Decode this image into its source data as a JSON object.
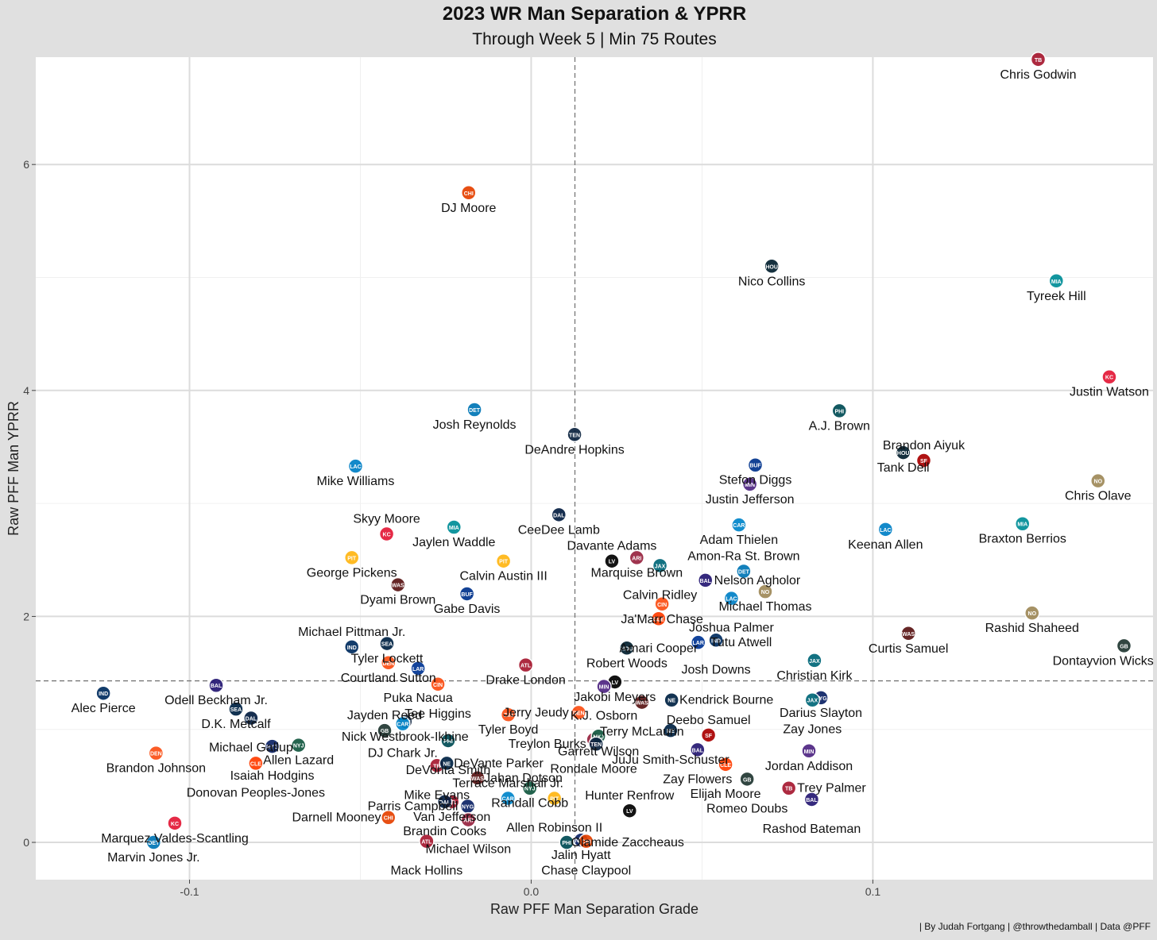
{
  "header": {
    "title": "2023 WR Man Separation & YPRR",
    "subtitle": "Through Week 5 | Min 75 Routes"
  },
  "caption": "| By Judah Fortgang | @throwthedamball | Data @PFF",
  "chart_data": {
    "type": "scatter",
    "title": "2023 WR Man Separation & YPRR",
    "subtitle": "Through Week 5 | Min 75 Routes",
    "xlabel": "Raw PFF Man Separation Grade",
    "ylabel": "Raw PFF Man YPRR",
    "xlim": [
      -0.145,
      0.182
    ],
    "ylim": [
      -0.33,
      6.95
    ],
    "x_ticks": [
      -0.1,
      0.0,
      0.1
    ],
    "x_tick_labels": [
      "-0.1",
      "0.0",
      "0.1"
    ],
    "y_ticks": [
      0,
      2,
      4,
      6
    ],
    "y_tick_labels": [
      "0",
      "2",
      "4",
      "6"
    ],
    "grid": true,
    "reference_lines": {
      "x": 0.0128,
      "y": 1.43
    },
    "colors": {
      "background": "#e0e0e0",
      "panel": "#ffffff",
      "grid": "#dcdcdc",
      "reference_line": "#777777"
    },
    "points": [
      {
        "name": "Chris Godwin",
        "x": 0.1484,
        "y": 6.93,
        "team": "TB",
        "color": "#a71930"
      },
      {
        "name": "DJ Moore",
        "x": -0.0183,
        "y": 5.75,
        "team": "CHI",
        "color": "#e64100"
      },
      {
        "name": "Nico Collins",
        "x": 0.0704,
        "y": 5.1,
        "team": "HOU",
        "color": "#03202f"
      },
      {
        "name": "Tyreek Hill",
        "x": 0.1537,
        "y": 4.97,
        "team": "MIA",
        "color": "#008e97"
      },
      {
        "name": "Justin Watson",
        "x": 0.1692,
        "y": 4.12,
        "team": "KC",
        "color": "#e31837"
      },
      {
        "name": "Josh Reynolds",
        "x": -0.0166,
        "y": 3.83,
        "team": "DET",
        "color": "#0076b6"
      },
      {
        "name": "A.J. Brown",
        "x": 0.0902,
        "y": 3.82,
        "team": "PHI",
        "color": "#004c54"
      },
      {
        "name": "DeAndre Hopkins",
        "x": 0.0127,
        "y": 3.61,
        "team": "TEN",
        "color": "#0c2340"
      },
      {
        "name": "Tank Dell",
        "x": 0.1089,
        "y": 3.45,
        "team": "HOU",
        "color": "#03202f"
      },
      {
        "name": "Brandon Aiyuk",
        "x": 0.1149,
        "y": 3.38,
        "team": "SF",
        "color": "#aa0000"
      },
      {
        "name": "Stefon Diggs",
        "x": 0.0656,
        "y": 3.34,
        "team": "BUF",
        "color": "#00338d"
      },
      {
        "name": "Mike Williams",
        "x": -0.0514,
        "y": 3.33,
        "team": "LAC",
        "color": "#0080c6"
      },
      {
        "name": "Justin Jefferson",
        "x": 0.064,
        "y": 3.17,
        "team": "MIN",
        "color": "#4f2683"
      },
      {
        "name": "Chris Olave",
        "x": 0.1659,
        "y": 3.2,
        "team": "NO",
        "color": "#9f8958"
      },
      {
        "name": "CeeDee Lamb",
        "x": 0.0081,
        "y": 2.9,
        "team": "DAL",
        "color": "#041e42"
      },
      {
        "name": "Braxton Berrios",
        "x": 0.1438,
        "y": 2.82,
        "team": "MIA",
        "color": "#008e97"
      },
      {
        "name": "Jaylen Waddle",
        "x": -0.0226,
        "y": 2.79,
        "team": "MIA",
        "color": "#008e97"
      },
      {
        "name": "Adam Thielen",
        "x": 0.0608,
        "y": 2.81,
        "team": "CAR",
        "color": "#0085ca"
      },
      {
        "name": "Keenan Allen",
        "x": 0.1037,
        "y": 2.77,
        "team": "LAC",
        "color": "#0080c6"
      },
      {
        "name": "Skyy Moore",
        "x": -0.0423,
        "y": 2.73,
        "team": "KC",
        "color": "#e31837"
      },
      {
        "name": "George Pickens",
        "x": -0.0525,
        "y": 2.52,
        "team": "PIT",
        "color": "#ffb612"
      },
      {
        "name": "Calvin Austin III",
        "x": -0.0081,
        "y": 2.49,
        "team": "PIT",
        "color": "#ffb612"
      },
      {
        "name": "Marquise Brown",
        "x": 0.0309,
        "y": 2.52,
        "team": "ARI",
        "color": "#97233f"
      },
      {
        "name": "Davante Adams",
        "x": 0.0236,
        "y": 2.49,
        "team": "LV",
        "color": "#000000"
      },
      {
        "name": "Calvin Ridley",
        "x": 0.0377,
        "y": 2.45,
        "team": "JAX",
        "color": "#006778"
      },
      {
        "name": "Amon-Ra St. Brown",
        "x": 0.0622,
        "y": 2.4,
        "team": "DET",
        "color": "#0076b6"
      },
      {
        "name": "Nelson Agholor",
        "x": 0.051,
        "y": 2.32,
        "team": "BAL",
        "color": "#241773"
      },
      {
        "name": "Dyami Brown",
        "x": -0.039,
        "y": 2.28,
        "team": "WAS",
        "color": "#5a1414"
      },
      {
        "name": "Michael Thomas",
        "x": 0.0685,
        "y": 2.22,
        "team": "NO",
        "color": "#9f8958"
      },
      {
        "name": "Gabe Davis",
        "x": -0.0188,
        "y": 2.2,
        "team": "BUF",
        "color": "#00338d"
      },
      {
        "name": "Joshua Palmer",
        "x": 0.0586,
        "y": 2.16,
        "team": "LAC",
        "color": "#0080c6"
      },
      {
        "name": "Ja'Marr Chase",
        "x": 0.0383,
        "y": 2.11,
        "team": "CIN",
        "color": "#fb4f14"
      },
      {
        "name": "Rashid Shaheed",
        "x": 0.1466,
        "y": 2.03,
        "team": "NO",
        "color": "#9f8958"
      },
      {
        "name": "Amari Cooper",
        "x": 0.0373,
        "y": 1.98,
        "team": "CLE",
        "color": "#ff3c00"
      },
      {
        "name": "Curtis Samuel",
        "x": 0.1104,
        "y": 1.85,
        "team": "WAS",
        "color": "#5a1414"
      },
      {
        "name": "Josh Downs",
        "x": 0.0541,
        "y": 1.79,
        "team": "IND",
        "color": "#002c5f"
      },
      {
        "name": "Tutu Atwell",
        "x": 0.0489,
        "y": 1.77,
        "team": "LAR",
        "color": "#003594"
      },
      {
        "name": "Tyler Lockett",
        "x": -0.0422,
        "y": 1.76,
        "team": "SEA",
        "color": "#002244"
      },
      {
        "name": "Dontayvion Wicks",
        "x": 0.1735,
        "y": 1.74,
        "team": "GB",
        "color": "#203731"
      },
      {
        "name": "Michael Pittman Jr.",
        "x": -0.0525,
        "y": 1.73,
        "team": "IND",
        "color": "#002c5f"
      },
      {
        "name": "Robert Woods",
        "x": 0.028,
        "y": 1.72,
        "team": "HOU",
        "color": "#03202f"
      },
      {
        "name": "Christian Kirk",
        "x": 0.0829,
        "y": 1.61,
        "team": "JAX",
        "color": "#006778"
      },
      {
        "name": "Courtland Sutton",
        "x": -0.0418,
        "y": 1.59,
        "team": "DEN",
        "color": "#fb4f14"
      },
      {
        "name": "Drake London",
        "x": -0.0016,
        "y": 1.57,
        "team": "ATL",
        "color": "#a71930"
      },
      {
        "name": "Puka Nacua",
        "x": -0.0331,
        "y": 1.54,
        "team": "LAR",
        "color": "#003594"
      },
      {
        "name": "Jakobi Meyers",
        "x": 0.0245,
        "y": 1.42,
        "team": "LV",
        "color": "#000000"
      },
      {
        "name": "K.J. Osborn",
        "x": 0.0213,
        "y": 1.38,
        "team": "MIN",
        "color": "#4f2683"
      },
      {
        "name": "Tee Higgins",
        "x": -0.0273,
        "y": 1.4,
        "team": "CIN",
        "color": "#fb4f14"
      },
      {
        "name": "Odell Beckham Jr.",
        "x": -0.0922,
        "y": 1.39,
        "team": "BAL",
        "color": "#241773"
      },
      {
        "name": "Alec Pierce",
        "x": -0.1252,
        "y": 1.32,
        "team": "IND",
        "color": "#002c5f"
      },
      {
        "name": "Darius Slayton",
        "x": 0.0848,
        "y": 1.28,
        "team": "NYG",
        "color": "#0b2265"
      },
      {
        "name": "Zay Jones",
        "x": 0.0823,
        "y": 1.26,
        "team": "JAX",
        "color": "#006778"
      },
      {
        "name": "Terry McLaurin",
        "x": 0.0324,
        "y": 1.24,
        "team": "WAS",
        "color": "#5a1414"
      },
      {
        "name": "Kendrick Bourne",
        "x": 0.0411,
        "y": 1.26,
        "team": "NE",
        "color": "#002244"
      },
      {
        "name": "D.K. Metcalf",
        "x": -0.0864,
        "y": 1.18,
        "team": "SEA",
        "color": "#002244"
      },
      {
        "name": "Jerry Jeudy",
        "x": 0.0139,
        "y": 1.15,
        "team": "DEN",
        "color": "#fb4f14"
      },
      {
        "name": "Michael Gallup",
        "x": -0.082,
        "y": 1.1,
        "team": "DAL",
        "color": "#041e42"
      },
      {
        "name": "Tyler Boyd",
        "x": -0.0067,
        "y": 1.13,
        "team": "CIN",
        "color": "#fb4f14"
      },
      {
        "name": "JuJu Smith-Schuster",
        "x": 0.0408,
        "y": 0.99,
        "team": "NE",
        "color": "#002244"
      },
      {
        "name": "Nick Westbrook-Ikhine",
        "x": -0.0369,
        "y": 1.07,
        "team": "TEN",
        "color": "#0c2340"
      },
      {
        "name": "DJ Chark Jr.",
        "x": -0.0376,
        "y": 1.05,
        "team": "CAR",
        "color": "#0085ca"
      },
      {
        "name": "Jayden Reed",
        "x": -0.0429,
        "y": 0.99,
        "team": "GB",
        "color": "#203731"
      },
      {
        "name": "Deebo Samuel",
        "x": 0.0519,
        "y": 0.95,
        "team": "SF",
        "color": "#aa0000"
      },
      {
        "name": "Rondale Moore",
        "x": 0.0183,
        "y": 0.91,
        "team": "ARI",
        "color": "#97233f"
      },
      {
        "name": "Garrett Wilson",
        "x": 0.0197,
        "y": 0.94,
        "team": "NYJ",
        "color": "#125740"
      },
      {
        "name": "DeVonta Smith",
        "x": -0.0243,
        "y": 0.9,
        "team": "PHI",
        "color": "#004c54"
      },
      {
        "name": "Brandon Johnson",
        "x": -0.1098,
        "y": 0.79,
        "team": "DEN",
        "color": "#fb4f14"
      },
      {
        "name": "Isaiah Hodgins",
        "x": -0.0758,
        "y": 0.85,
        "team": "NYG",
        "color": "#0b2265"
      },
      {
        "name": "Allen Lazard",
        "x": -0.0681,
        "y": 0.86,
        "team": "NYJ",
        "color": "#125740"
      },
      {
        "name": "Zay Flowers",
        "x": 0.0487,
        "y": 0.82,
        "team": "BAL",
        "color": "#241773"
      },
      {
        "name": "Jordan Addison",
        "x": 0.0813,
        "y": 0.81,
        "team": "MIN",
        "color": "#4f2683"
      },
      {
        "name": "Treylon Burks",
        "x": 0.019,
        "y": 0.87,
        "team": "TEN",
        "color": "#0c2340"
      },
      {
        "name": "Donovan Peoples-Jones",
        "x": -0.0806,
        "y": 0.7,
        "team": "CLE",
        "color": "#ff3c00"
      },
      {
        "name": "Elijah Moore",
        "x": 0.0569,
        "y": 0.69,
        "team": "CLE",
        "color": "#ff3c00"
      },
      {
        "name": "Mike Evans",
        "x": -0.0276,
        "y": 0.68,
        "team": "TB",
        "color": "#a71930"
      },
      {
        "name": "DeVante Parker",
        "x": -0.0247,
        "y": 0.7,
        "team": "NE",
        "color": "#002244"
      },
      {
        "name": "Jahan Dotson",
        "x": -0.0157,
        "y": 0.57,
        "team": "WAS",
        "color": "#5a1414"
      },
      {
        "name": "Romeo Doubs",
        "x": 0.0632,
        "y": 0.56,
        "team": "GB",
        "color": "#203731"
      },
      {
        "name": "Trey Palmer",
        "x": 0.0754,
        "y": 0.48,
        "team": "TB",
        "color": "#a71930"
      },
      {
        "name": "Rashod Bateman",
        "x": 0.0821,
        "y": 0.38,
        "team": "BAL",
        "color": "#241773"
      },
      {
        "name": "Randall Cobb",
        "x": -0.0004,
        "y": 0.48,
        "team": "NYJ",
        "color": "#125740"
      },
      {
        "name": "Allen Robinson II",
        "x": 0.0068,
        "y": 0.39,
        "team": "PIT",
        "color": "#ffb612"
      },
      {
        "name": "Hunter Renfrow",
        "x": 0.0288,
        "y": 0.28,
        "team": "LV",
        "color": "#000000"
      },
      {
        "name": "Van Jefferson",
        "x": -0.0232,
        "y": 0.36,
        "team": "ATL",
        "color": "#a71930"
      },
      {
        "name": "Brandin Cooks",
        "x": -0.0253,
        "y": 0.36,
        "team": "DAL",
        "color": "#041e42"
      },
      {
        "name": "Parris Campbell",
        "x": -0.0186,
        "y": 0.32,
        "team": "NYG",
        "color": "#0b2265"
      },
      {
        "name": "Terrace Marshall Jr.",
        "x": -0.0068,
        "y": 0.39,
        "team": "CAR",
        "color": "#0085ca"
      },
      {
        "name": "Michael Wilson",
        "x": -0.0184,
        "y": 0.2,
        "team": "ARI",
        "color": "#97233f"
      },
      {
        "name": "Marquez Valdes-Scantling",
        "x": -0.1043,
        "y": 0.17,
        "team": "KC",
        "color": "#e31837"
      },
      {
        "name": "Darnell Mooney",
        "x": -0.0418,
        "y": 0.22,
        "team": "CHI",
        "color": "#e64100"
      },
      {
        "name": "Jalin Hyatt",
        "x": 0.0146,
        "y": 0.02,
        "team": "NYG",
        "color": "#0b2265"
      },
      {
        "name": "Chase Claypool",
        "x": 0.0161,
        "y": 0.01,
        "team": "CHI",
        "color": "#e64100"
      },
      {
        "name": "Olamide Zaccheaus",
        "x": 0.0104,
        "y": 0.0,
        "team": "PHI",
        "color": "#004c54"
      },
      {
        "name": "Mack Hollins",
        "x": -0.0306,
        "y": 0.01,
        "team": "ATL",
        "color": "#a71930"
      },
      {
        "name": "Marvin Jones Jr.",
        "x": -0.1105,
        "y": 0.0,
        "team": "DET",
        "color": "#0076b6"
      }
    ]
  }
}
